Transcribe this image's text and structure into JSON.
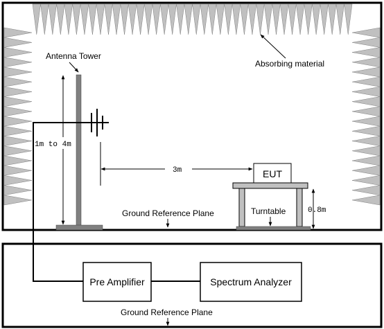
{
  "labels": {
    "antenna_tower": "Antenna Tower",
    "absorbing_material": "Absorbing material",
    "height_range": "1m to 4m",
    "distance": "3m",
    "eut": "EUT",
    "table_height": "0.8m",
    "turntable": "Turntable",
    "ground_plane_chamber": "Ground Reference Plane",
    "pre_amplifier": "Pre Amplifier",
    "spectrum_analyzer": "Spectrum Analyzer",
    "ground_plane_lower": "Ground Reference Plane"
  },
  "colors": {
    "absorber": "#c0c0c0",
    "tower": "#808080",
    "line": "#000000"
  }
}
